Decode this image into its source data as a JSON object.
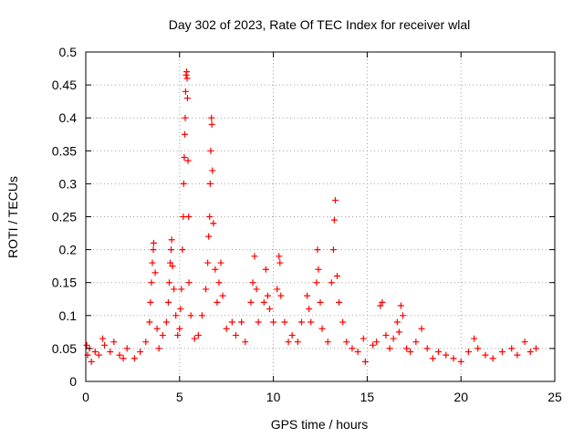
{
  "chart_data": {
    "type": "scatter",
    "title": "Day 302 of 2023, Rate Of TEC Index for receiver wlal",
    "xlabel": "GPS time / hours",
    "ylabel": "ROTI / TECUs",
    "xlim": [
      0,
      25
    ],
    "ylim": [
      0,
      0.5
    ],
    "xticks": [
      "0",
      "5",
      "10",
      "15",
      "20",
      "25"
    ],
    "yticks": [
      "0",
      "0.05",
      "0.1",
      "0.15",
      "0.2",
      "0.25",
      "0.3",
      "0.35",
      "0.4",
      "0.45",
      "0.5"
    ],
    "grid": true,
    "marker": "+",
    "color": "#ff0000",
    "series": [
      {
        "points": [
          [
            0.05,
            0.055
          ],
          [
            0.1,
            0.04
          ],
          [
            0.2,
            0.05
          ],
          [
            0.3,
            0.03
          ],
          [
            0.5,
            0.045
          ],
          [
            0.7,
            0.04
          ],
          [
            0.9,
            0.065
          ],
          [
            1.0,
            0.055
          ],
          [
            1.3,
            0.045
          ],
          [
            1.5,
            0.06
          ],
          [
            1.8,
            0.04
          ],
          [
            2.0,
            0.035
          ],
          [
            2.2,
            0.05
          ],
          [
            2.6,
            0.035
          ],
          [
            2.9,
            0.045
          ],
          [
            3.2,
            0.06
          ],
          [
            3.4,
            0.09
          ],
          [
            3.45,
            0.12
          ],
          [
            3.5,
            0.15
          ],
          [
            3.55,
            0.18
          ],
          [
            3.6,
            0.2
          ],
          [
            3.62,
            0.21
          ],
          [
            3.7,
            0.165
          ],
          [
            3.8,
            0.08
          ],
          [
            3.9,
            0.05
          ],
          [
            4.1,
            0.07
          ],
          [
            4.3,
            0.09
          ],
          [
            4.4,
            0.12
          ],
          [
            4.45,
            0.15
          ],
          [
            4.5,
            0.18
          ],
          [
            4.55,
            0.2
          ],
          [
            4.58,
            0.215
          ],
          [
            4.62,
            0.175
          ],
          [
            4.7,
            0.14
          ],
          [
            4.8,
            0.1
          ],
          [
            4.9,
            0.07
          ],
          [
            5.0,
            0.08
          ],
          [
            5.05,
            0.11
          ],
          [
            5.1,
            0.14
          ],
          [
            5.15,
            0.2
          ],
          [
            5.2,
            0.25
          ],
          [
            5.22,
            0.3
          ],
          [
            5.25,
            0.34
          ],
          [
            5.28,
            0.375
          ],
          [
            5.3,
            0.4
          ],
          [
            5.32,
            0.44
          ],
          [
            5.35,
            0.465
          ],
          [
            5.38,
            0.47
          ],
          [
            5.4,
            0.46
          ],
          [
            5.42,
            0.43
          ],
          [
            5.45,
            0.335
          ],
          [
            5.48,
            0.25
          ],
          [
            5.5,
            0.15
          ],
          [
            5.6,
            0.1
          ],
          [
            5.8,
            0.065
          ],
          [
            6.0,
            0.07
          ],
          [
            6.2,
            0.1
          ],
          [
            6.4,
            0.14
          ],
          [
            6.5,
            0.18
          ],
          [
            6.55,
            0.22
          ],
          [
            6.6,
            0.25
          ],
          [
            6.63,
            0.3
          ],
          [
            6.66,
            0.35
          ],
          [
            6.7,
            0.4
          ],
          [
            6.72,
            0.39
          ],
          [
            6.75,
            0.32
          ],
          [
            6.8,
            0.24
          ],
          [
            6.9,
            0.17
          ],
          [
            7.0,
            0.12
          ],
          [
            7.1,
            0.15
          ],
          [
            7.2,
            0.18
          ],
          [
            7.3,
            0.13
          ],
          [
            7.5,
            0.08
          ],
          [
            7.8,
            0.09
          ],
          [
            8.0,
            0.07
          ],
          [
            8.3,
            0.09
          ],
          [
            8.5,
            0.06
          ],
          [
            8.8,
            0.12
          ],
          [
            8.9,
            0.15
          ],
          [
            9.0,
            0.19
          ],
          [
            9.1,
            0.14
          ],
          [
            9.2,
            0.09
          ],
          [
            9.5,
            0.12
          ],
          [
            9.6,
            0.17
          ],
          [
            9.7,
            0.13
          ],
          [
            9.8,
            0.11
          ],
          [
            10.0,
            0.09
          ],
          [
            10.2,
            0.14
          ],
          [
            10.3,
            0.19
          ],
          [
            10.35,
            0.18
          ],
          [
            10.4,
            0.13
          ],
          [
            10.6,
            0.09
          ],
          [
            10.8,
            0.06
          ],
          [
            11.0,
            0.07
          ],
          [
            11.3,
            0.06
          ],
          [
            11.5,
            0.09
          ],
          [
            11.8,
            0.13
          ],
          [
            11.9,
            0.11
          ],
          [
            12.0,
            0.09
          ],
          [
            12.3,
            0.15
          ],
          [
            12.35,
            0.2
          ],
          [
            12.4,
            0.17
          ],
          [
            12.5,
            0.12
          ],
          [
            12.6,
            0.08
          ],
          [
            12.9,
            0.06
          ],
          [
            13.1,
            0.15
          ],
          [
            13.2,
            0.2
          ],
          [
            13.25,
            0.245
          ],
          [
            13.3,
            0.275
          ],
          [
            13.4,
            0.16
          ],
          [
            13.5,
            0.12
          ],
          [
            13.7,
            0.09
          ],
          [
            13.9,
            0.06
          ],
          [
            14.2,
            0.05
          ],
          [
            14.5,
            0.045
          ],
          [
            14.8,
            0.065
          ],
          [
            14.9,
            0.03
          ],
          [
            15.3,
            0.055
          ],
          [
            15.5,
            0.06
          ],
          [
            15.7,
            0.115
          ],
          [
            15.8,
            0.12
          ],
          [
            16.0,
            0.07
          ],
          [
            16.2,
            0.05
          ],
          [
            16.4,
            0.065
          ],
          [
            16.6,
            0.09
          ],
          [
            16.7,
            0.075
          ],
          [
            16.8,
            0.115
          ],
          [
            16.9,
            0.1
          ],
          [
            17.1,
            0.05
          ],
          [
            17.3,
            0.045
          ],
          [
            17.6,
            0.06
          ],
          [
            17.9,
            0.08
          ],
          [
            18.2,
            0.05
          ],
          [
            18.5,
            0.035
          ],
          [
            18.8,
            0.045
          ],
          [
            19.2,
            0.04
          ],
          [
            19.6,
            0.035
          ],
          [
            20.0,
            0.03
          ],
          [
            20.4,
            0.045
          ],
          [
            20.7,
            0.065
          ],
          [
            20.9,
            0.05
          ],
          [
            21.3,
            0.04
          ],
          [
            21.7,
            0.035
          ],
          [
            22.2,
            0.045
          ],
          [
            22.7,
            0.05
          ],
          [
            23.0,
            0.04
          ],
          [
            23.4,
            0.06
          ],
          [
            23.7,
            0.045
          ],
          [
            24.0,
            0.05
          ]
        ]
      }
    ]
  }
}
